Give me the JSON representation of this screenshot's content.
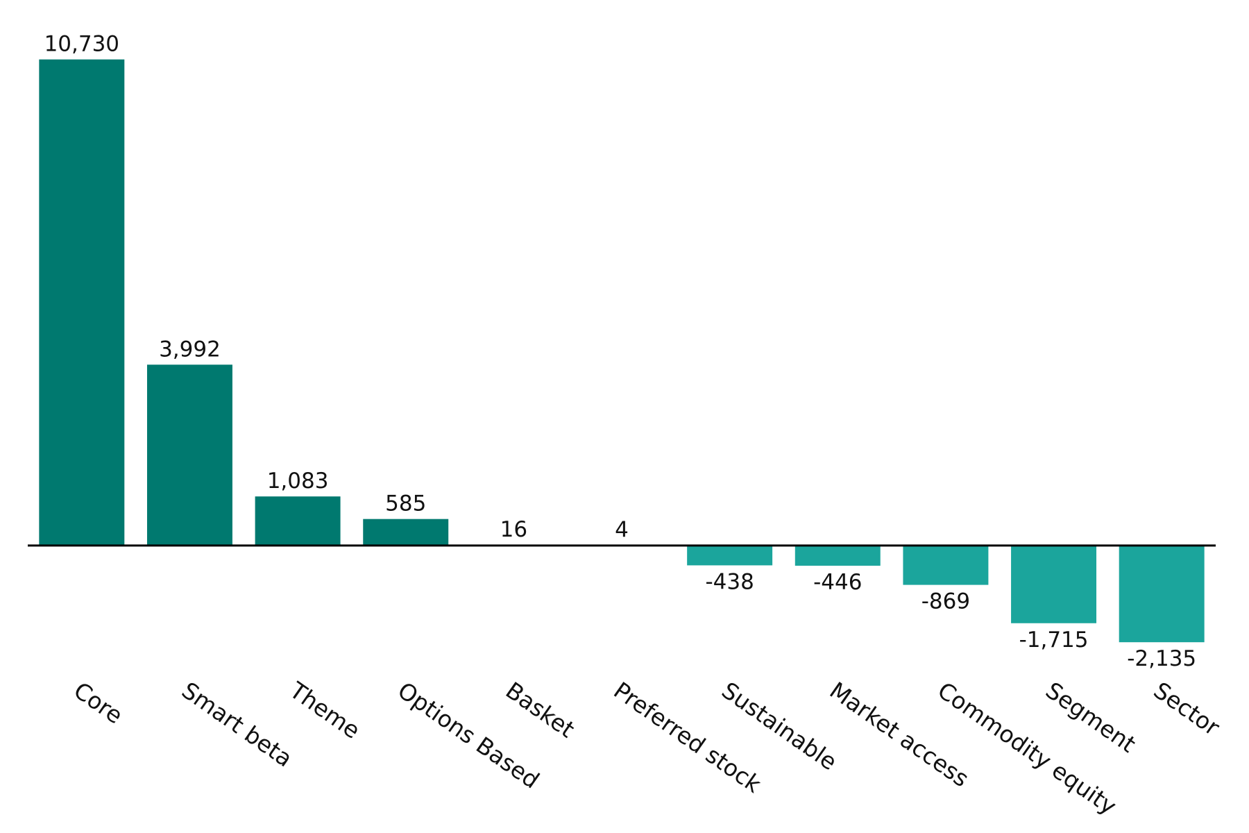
{
  "chart_data": {
    "type": "bar",
    "categories": [
      "Core",
      "Smart beta",
      "Theme",
      "Options Based",
      "Basket",
      "Preferred stock",
      "Sustainable",
      "Market access",
      "Commodity equity",
      "Segment",
      "Sector"
    ],
    "values": [
      10730,
      3992,
      1083,
      585,
      16,
      4,
      -438,
      -446,
      -869,
      -1715,
      -2135
    ],
    "value_labels": [
      "10,730",
      "3,992",
      "1,083",
      "585",
      "16",
      "4",
      "-438",
      "-446",
      "-869",
      "-1,715",
      "-2,135"
    ],
    "color": "#00796f",
    "negative_color": "#1ba59c",
    "ylim": [
      -2500,
      11000
    ]
  }
}
